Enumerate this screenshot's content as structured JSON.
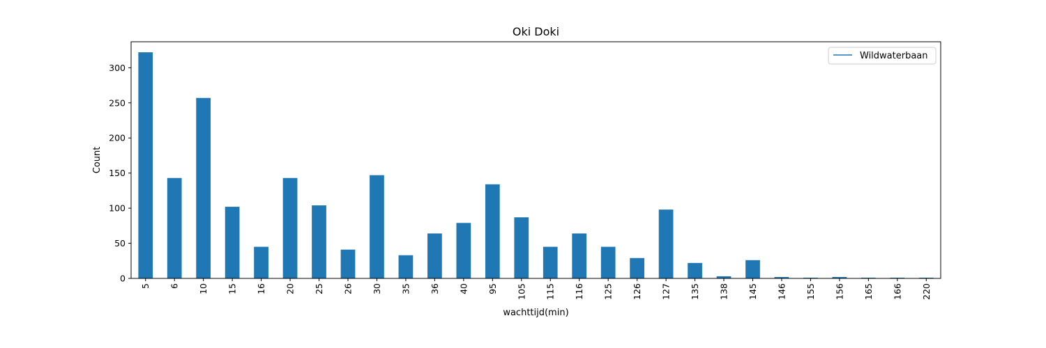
{
  "chart_data": {
    "type": "bar",
    "title": "Oki Doki",
    "xlabel": "wachttijd(min)",
    "ylabel": "Count",
    "categories": [
      "5",
      "6",
      "10",
      "15",
      "16",
      "20",
      "25",
      "26",
      "30",
      "35",
      "36",
      "40",
      "95",
      "105",
      "115",
      "116",
      "125",
      "126",
      "127",
      "135",
      "138",
      "145",
      "146",
      "155",
      "156",
      "165",
      "166",
      "220"
    ],
    "series": [
      {
        "name": "Wildwaterbaan",
        "values": [
          322,
          143,
          257,
          102,
          45,
          143,
          104,
          41,
          147,
          33,
          64,
          79,
          134,
          87,
          45,
          64,
          45,
          29,
          98,
          22,
          3,
          26,
          2,
          1,
          2,
          1,
          1,
          1
        ]
      }
    ],
    "ylim": [
      0,
      337
    ],
    "yticks": [
      0,
      50,
      100,
      150,
      200,
      250,
      300
    ],
    "grid": false,
    "legend_placement": "top-right",
    "legend_entry": "Wildwaterbaan",
    "bar_color": "#1f77b4",
    "legend_line_color": "#1f77b4"
  }
}
